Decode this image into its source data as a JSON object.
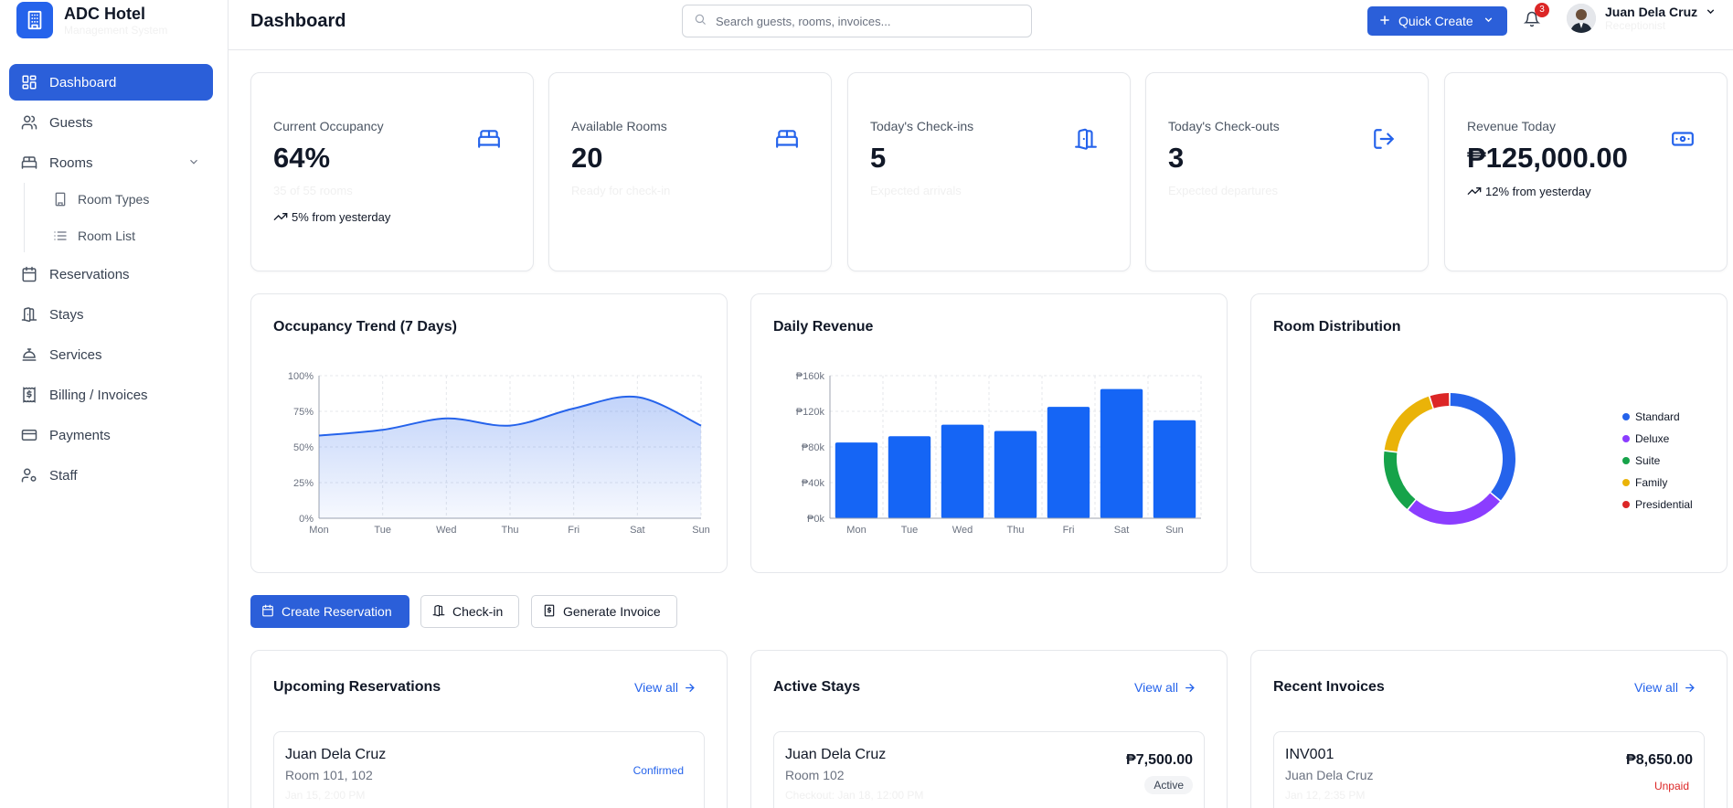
{
  "brand": {
    "name": "ADC Hotel",
    "subtitle": "Management System"
  },
  "sidebar": {
    "items": [
      {
        "label": "Dashboard",
        "icon": "dashboard-icon",
        "active": true
      },
      {
        "label": "Guests",
        "icon": "users-icon"
      },
      {
        "label": "Rooms",
        "icon": "bed-icon",
        "expanded": true
      },
      {
        "label": "Room Types",
        "icon": "building-icon",
        "sub": true
      },
      {
        "label": "Room List",
        "icon": "list-icon",
        "sub": true
      },
      {
        "label": "Reservations",
        "icon": "calendar-icon"
      },
      {
        "label": "Stays",
        "icon": "door-icon"
      },
      {
        "label": "Services",
        "icon": "concierge-bell-icon"
      },
      {
        "label": "Billing / Invoices",
        "icon": "receipt-icon"
      },
      {
        "label": "Payments",
        "icon": "credit-card-icon"
      },
      {
        "label": "Staff",
        "icon": "user-cog-icon"
      }
    ]
  },
  "header": {
    "title": "Dashboard",
    "search_placeholder": "Search guests, rooms, invoices...",
    "quick_create": "Quick Create",
    "notifications": "3",
    "user_name": "Juan Dela Cruz",
    "user_role": "Receptionist"
  },
  "stats": [
    {
      "label": "Current Occupancy",
      "value": "64%",
      "sub": "35 of 55 rooms",
      "trend": "5% from yesterday",
      "icon": "bed-icon"
    },
    {
      "label": "Available Rooms",
      "value": "20",
      "sub": "Ready for check-in",
      "icon": "bed-icon"
    },
    {
      "label": "Today's Check-ins",
      "value": "5",
      "sub": "Expected arrivals",
      "icon": "door-open-icon"
    },
    {
      "label": "Today's Check-outs",
      "value": "3",
      "sub": "Expected departures",
      "icon": "log-out-icon"
    },
    {
      "label": "Revenue Today",
      "value": "₱125,000.00",
      "trend": "12% from yesterday",
      "icon": "banknote-icon"
    }
  ],
  "charts": {
    "occupancy_title": "Occupancy Trend (7 Days)",
    "revenue_title": "Daily Revenue",
    "distribution_title": "Room Distribution"
  },
  "chart_data": [
    {
      "type": "area",
      "title": "Occupancy Trend (7 Days)",
      "x": [
        "Mon",
        "Tue",
        "Wed",
        "Thu",
        "Fri",
        "Sat",
        "Sun"
      ],
      "series": [
        {
          "values": [
            58,
            62,
            70,
            65,
            77,
            85,
            65
          ]
        }
      ],
      "y_ticks": [
        "0%",
        "25%",
        "50%",
        "75%",
        "100%"
      ],
      "ylim": [
        0,
        100
      ],
      "grid": true,
      "color": "#2563eb"
    },
    {
      "type": "bar",
      "title": "Daily Revenue",
      "categories": [
        "Mon",
        "Tue",
        "Wed",
        "Thu",
        "Fri",
        "Sat",
        "Sun"
      ],
      "values": [
        85000,
        92000,
        105000,
        98000,
        125000,
        145000,
        110000
      ],
      "y_ticks": [
        "₱0k",
        "₱40k",
        "₱80k",
        "₱120k",
        "₱160k"
      ],
      "ylim": [
        0,
        160000
      ],
      "grid": true,
      "color": "#1565f5"
    },
    {
      "type": "pie",
      "title": "Room Distribution",
      "donut": true,
      "legend": "right",
      "slices": [
        {
          "name": "Standard",
          "value": 36,
          "color": "#2563eb"
        },
        {
          "name": "Deluxe",
          "value": 25,
          "color": "#8b3dff"
        },
        {
          "name": "Suite",
          "value": 16,
          "color": "#16a34a"
        },
        {
          "name": "Family",
          "value": 18,
          "color": "#eab308"
        },
        {
          "name": "Presidential",
          "value": 5,
          "color": "#dc2626"
        }
      ]
    }
  ],
  "actions": {
    "create_reservation": "Create Reservation",
    "check_in": "Check-in",
    "generate_invoice": "Generate Invoice"
  },
  "lists": {
    "view_all": "View all",
    "reservations": {
      "title": "Upcoming Reservations",
      "row": {
        "name": "Juan Dela Cruz",
        "rooms": "Room 101, 102",
        "date": "Jan 15, 2:00 PM",
        "status": "Confirmed"
      }
    },
    "stays": {
      "title": "Active Stays",
      "row": {
        "name": "Juan Dela Cruz",
        "room": "Room 102",
        "checkout": "Checkout: Jan 18, 12:00 PM",
        "amount": "₱7,500.00",
        "status": "Active"
      }
    },
    "invoices": {
      "title": "Recent Invoices",
      "row": {
        "id": "INV001",
        "name": "Juan Dela Cruz",
        "date": "Jan 12, 2:35 PM",
        "amount": "₱8,650.00",
        "status": "Unpaid"
      }
    }
  },
  "colors": {
    "primary": "#2b5fd9",
    "danger": "#dc2626",
    "border": "#e5e7eb"
  }
}
